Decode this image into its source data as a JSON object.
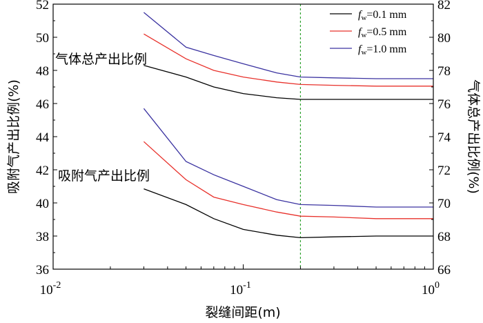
{
  "chart_data": {
    "type": "line",
    "xlabel": "裂缝间距(m)",
    "ylabel_left": "吸附气产出比例(%)",
    "ylabel_right": "气体总产出比例(%)",
    "x_scale": "log",
    "xlim": [
      0.01,
      1
    ],
    "x_ticks": [
      {
        "value": 0.01,
        "base": "10",
        "exp": "-2"
      },
      {
        "value": 0.1,
        "base": "10",
        "exp": "-1"
      },
      {
        "value": 1,
        "base": "10",
        "exp": "0"
      }
    ],
    "ylim_left": [
      36,
      52
    ],
    "yticks_left": [
      "36",
      "38",
      "40",
      "42",
      "44",
      "46",
      "48",
      "50",
      "52"
    ],
    "ylim_right": [
      66,
      82
    ],
    "yticks_right": [
      "66",
      "68",
      "70",
      "72",
      "74",
      "76",
      "78",
      "80",
      "82"
    ],
    "vline": {
      "x": 0.2,
      "color": "#2ca02c",
      "style": "dotted"
    },
    "annotations": {
      "total": "气体总产出比例",
      "adsorbed": "吸附气产出比例"
    },
    "x": [
      0.03,
      0.05,
      0.07,
      0.1,
      0.15,
      0.2,
      0.3,
      0.5,
      1.0
    ],
    "series": [
      {
        "name_italic": "f",
        "name_sub": "w",
        "name_rest": "=0.1 mm",
        "color": "#000000",
        "group": "total",
        "axis": "right",
        "values": [
          78.3,
          77.6,
          77.0,
          76.6,
          76.35,
          76.25,
          76.25,
          76.25,
          76.25
        ]
      },
      {
        "name_italic": "f",
        "name_sub": "w",
        "name_rest": "=0.5 mm",
        "color": "#e8302a",
        "group": "total",
        "axis": "right",
        "values": [
          80.2,
          78.7,
          78.0,
          77.6,
          77.3,
          77.15,
          77.1,
          77.05,
          77.05
        ]
      },
      {
        "name_italic": "f",
        "name_sub": "w",
        "name_rest": "=1.0 mm",
        "color": "#3a32a0",
        "group": "total",
        "axis": "right",
        "values": [
          81.5,
          79.4,
          78.9,
          78.4,
          77.85,
          77.6,
          77.55,
          77.5,
          77.5
        ]
      },
      {
        "name_italic": "f",
        "name_sub": "w",
        "name_rest": "=0.1 mm",
        "color": "#000000",
        "group": "adsorbed",
        "axis": "left",
        "values": [
          40.85,
          39.9,
          39.05,
          38.4,
          38.05,
          37.9,
          37.95,
          38.0,
          38.0
        ]
      },
      {
        "name_italic": "f",
        "name_sub": "w",
        "name_rest": "=0.5 mm",
        "color": "#e8302a",
        "group": "adsorbed",
        "axis": "left",
        "values": [
          43.7,
          41.4,
          40.35,
          39.9,
          39.45,
          39.2,
          39.15,
          39.05,
          39.05
        ]
      },
      {
        "name_italic": "f",
        "name_sub": "w",
        "name_rest": "=1.0 mm",
        "color": "#3a32a0",
        "group": "adsorbed",
        "axis": "left",
        "values": [
          45.7,
          42.5,
          41.7,
          41.0,
          40.2,
          39.9,
          39.85,
          39.75,
          39.75
        ]
      }
    ],
    "legend": [
      {
        "italic": "f",
        "sub": "w",
        "rest": "=0.1 mm",
        "color": "#000000"
      },
      {
        "italic": "f",
        "sub": "w",
        "rest": "=0.5 mm",
        "color": "#e8302a"
      },
      {
        "italic": "f",
        "sub": "w",
        "rest": "=1.0 mm",
        "color": "#3a32a0"
      }
    ],
    "legend_position": "top-right",
    "grid": false
  }
}
